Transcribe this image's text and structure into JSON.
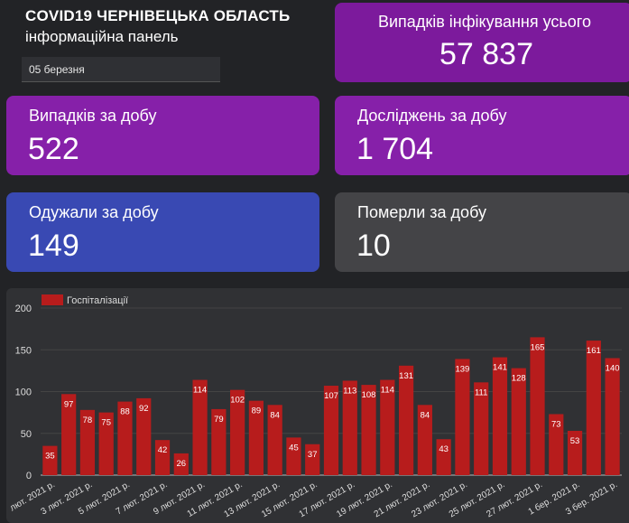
{
  "header": {
    "title": "COVID19 ЧЕРНІВЕЦЬКА ОБЛАСТЬ",
    "subtitle": "інформаційна панель",
    "date_value": "05 березня"
  },
  "cards": {
    "total": {
      "label": "Випадків інфікування усього",
      "value": "57 837"
    },
    "daily_cases": {
      "label": "Випадків за добу",
      "value": "522"
    },
    "daily_tests": {
      "label": "Досліджень за добу",
      "value": "1 704"
    },
    "recovered": {
      "label": "Одужали за добу",
      "value": "149"
    },
    "deaths": {
      "label": "Померли за добу",
      "value": "10"
    }
  },
  "colors": {
    "bar": "#b71c1c",
    "card_purple": "#8620a9",
    "card_blue": "#3949b3",
    "card_gray": "#444447"
  },
  "chart_data": {
    "type": "bar",
    "legend": "Госпіталізації",
    "legend_position": "top-left",
    "ylim": [
      0,
      200
    ],
    "yticks": [
      0,
      50,
      100,
      150,
      200
    ],
    "grid": true,
    "values": [
      35,
      97,
      78,
      75,
      88,
      92,
      42,
      26,
      114,
      79,
      102,
      89,
      84,
      45,
      37,
      107,
      113,
      108,
      114,
      131,
      84,
      43,
      139,
      111,
      141,
      128,
      165,
      73,
      53,
      161,
      140
    ],
    "x_tick_labels": [
      "лют. 2021 р.",
      "3 лют. 2021 р.",
      "5 лют. 2021 р.",
      "7 лют. 2021 р.",
      "9 лют. 2021 р.",
      "11 лют. 2021 р.",
      "13 лют. 2021 р.",
      "15 лют. 2021 р.",
      "17 лют. 2021 р.",
      "19 лют. 2021 р.",
      "21 лют. 2021 р.",
      "23 лют. 2021 р.",
      "25 лют. 2021 р.",
      "27 лют. 2021 р.",
      "1 бер. 2021 р.",
      "3 бер. 2021 р."
    ]
  }
}
